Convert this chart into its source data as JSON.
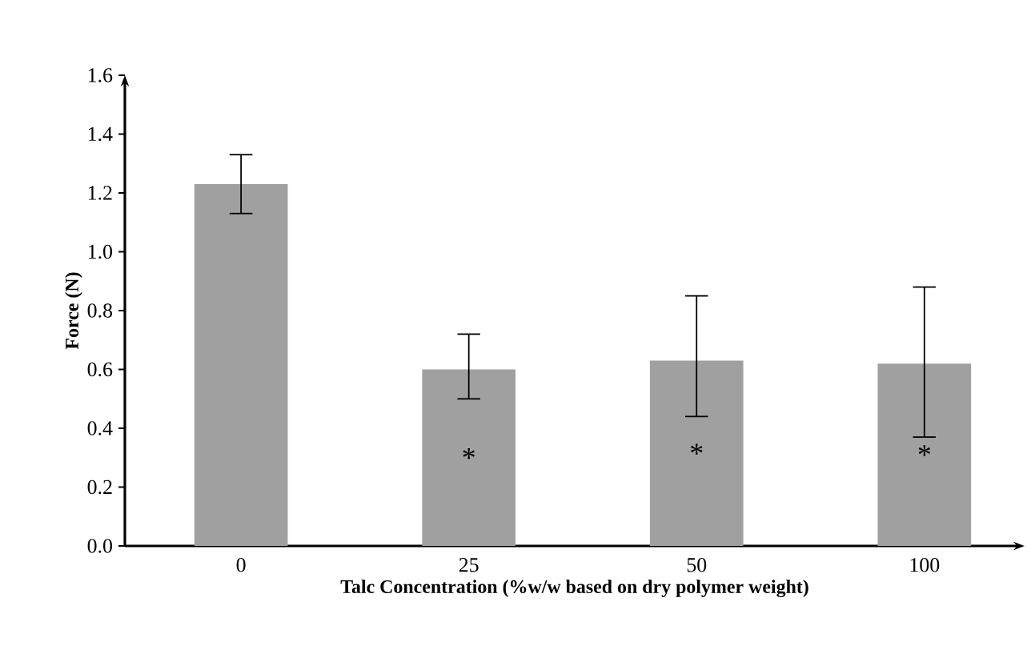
{
  "chart_data": {
    "type": "bar",
    "xlabel": "Talc Concentration (%w/w based on dry polymer weight)",
    "ylabel": "Force (N)",
    "categories": [
      "0",
      "25",
      "50",
      "100"
    ],
    "values": [
      1.23,
      0.6,
      0.63,
      0.62
    ],
    "errors": [
      [
        1.13,
        1.33
      ],
      [
        0.5,
        0.72
      ],
      [
        0.44,
        0.85
      ],
      [
        0.37,
        0.88
      ]
    ],
    "color": "#a0a0a0",
    "ylim": [
      0,
      1.6
    ],
    "yticks": [
      {
        "value": 0,
        "label": "0.0"
      },
      {
        "value": 0.2,
        "label": "0.2"
      },
      {
        "value": 0.4,
        "label": "0.4"
      },
      {
        "value": 0.6,
        "label": "0.6"
      },
      {
        "value": 0.8,
        "label": "0.8"
      },
      {
        "value": 1.0,
        "label": "1.0"
      },
      {
        "value": 1.2,
        "label": "1.2"
      },
      {
        "value": 1.4,
        "label": "1.4"
      },
      {
        "value": 1.6,
        "label": "1.6"
      }
    ],
    "grid": false,
    "annotations": [
      "*",
      "*",
      "*"
    ]
  }
}
